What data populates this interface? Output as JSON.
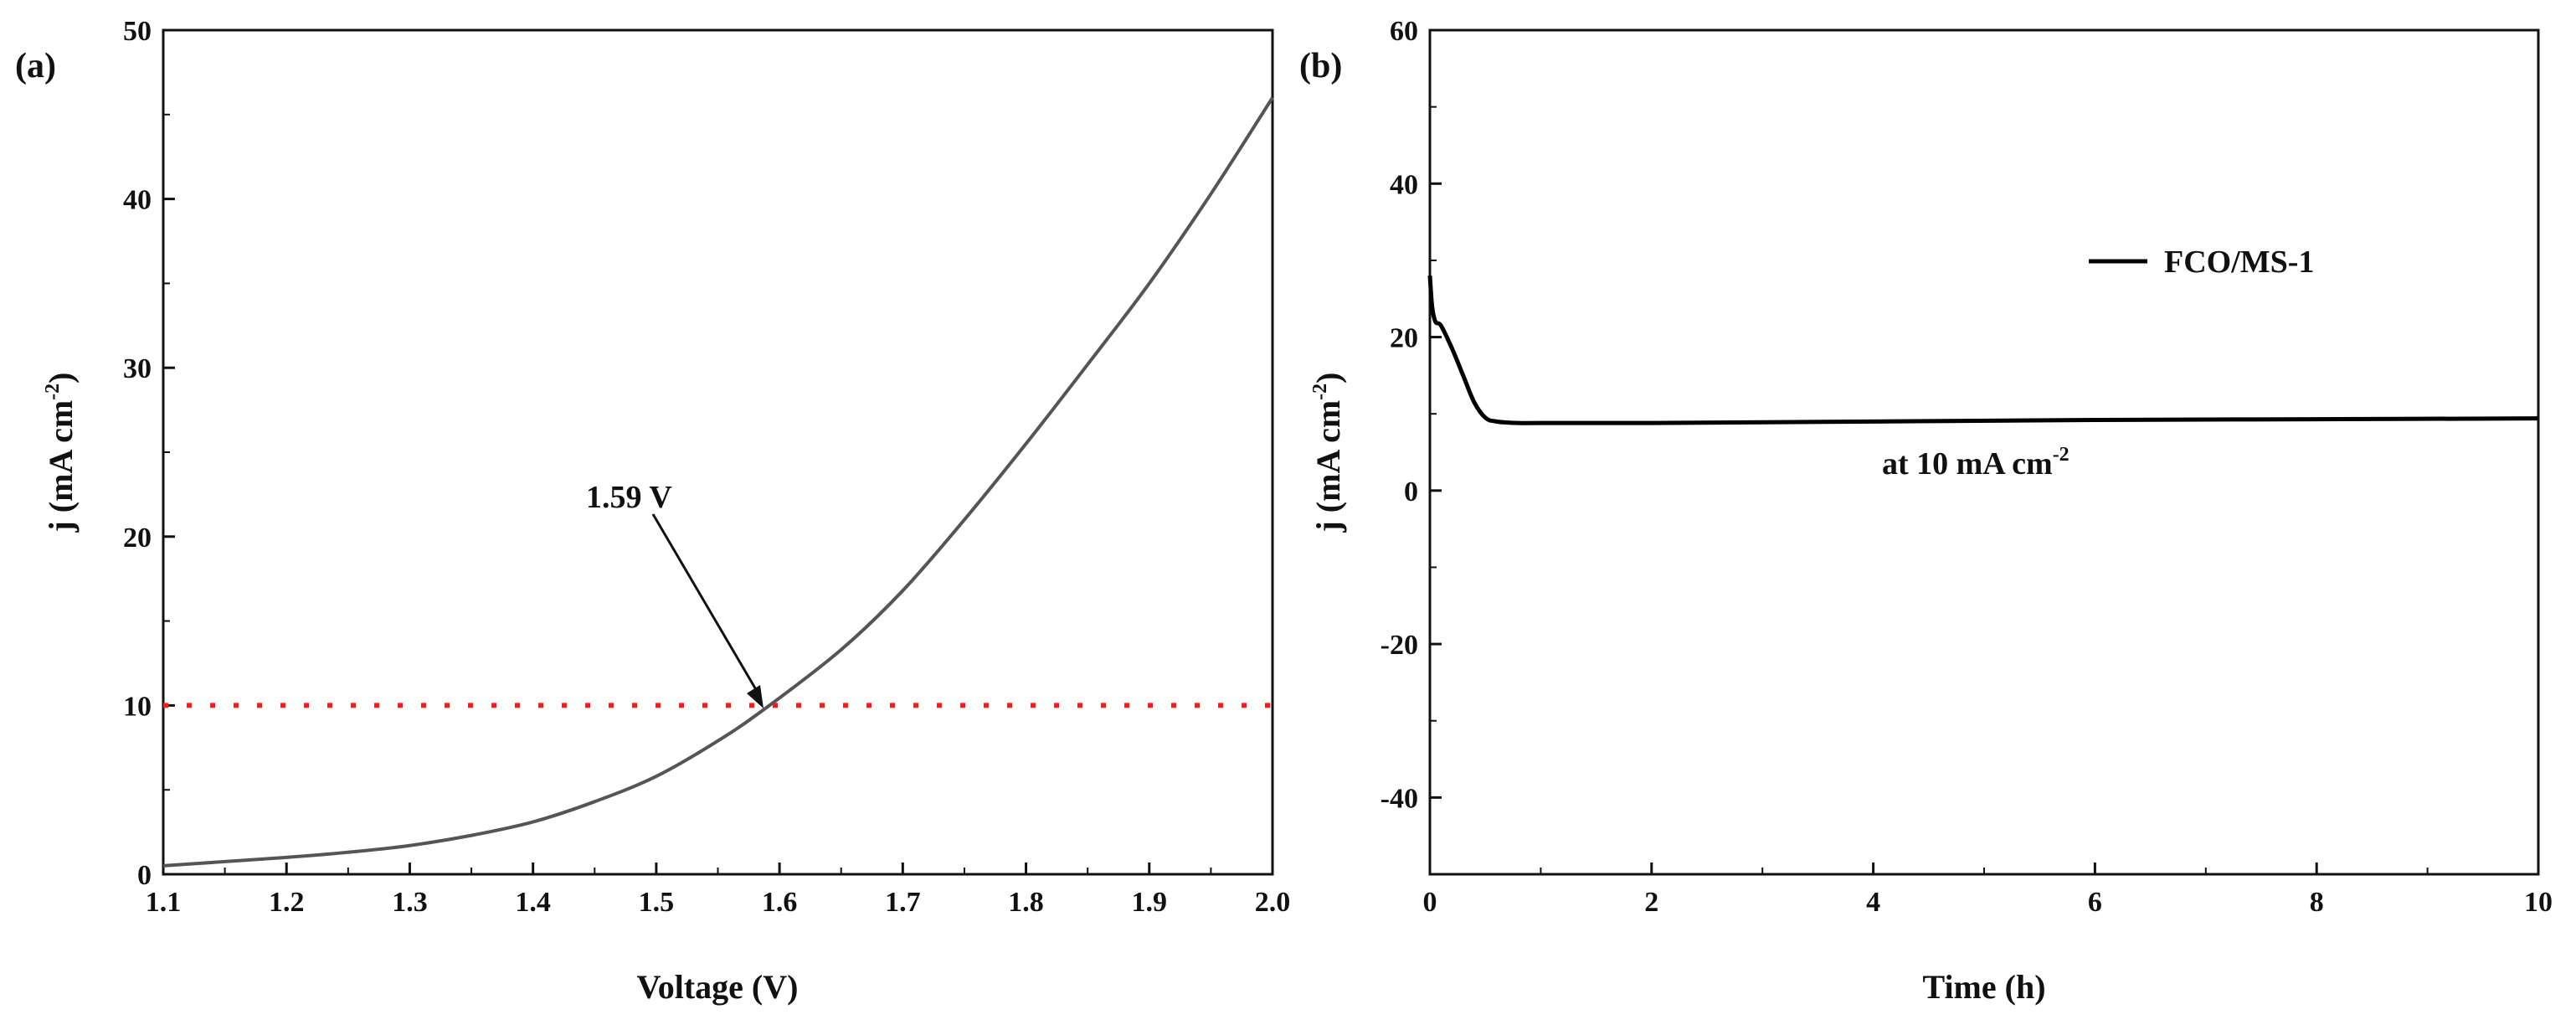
{
  "chart_data": [
    {
      "panel_label": "(a)",
      "type": "line",
      "xlabel": "Voltage (V)",
      "ylabel": "j (mA cm",
      "ylabel_sup": "-2",
      "ylabel_end": ")",
      "xlim": [
        1.1,
        2.0
      ],
      "ylim": [
        0,
        50
      ],
      "xticks": [
        1.1,
        1.2,
        1.3,
        1.4,
        1.5,
        1.6,
        1.7,
        1.8,
        1.9,
        2.0
      ],
      "xtick_labels": [
        "1.1",
        "1.2",
        "1.3",
        "1.4",
        "1.5",
        "1.6",
        "1.7",
        "1.8",
        "1.9",
        "2.0"
      ],
      "yticks": [
        0,
        10,
        20,
        30,
        40,
        50
      ],
      "ytick_labels": [
        "0",
        "10",
        "20",
        "30",
        "40",
        "50"
      ],
      "series": [
        {
          "color": "#555555",
          "x": [
            1.1,
            1.15,
            1.2,
            1.25,
            1.3,
            1.35,
            1.4,
            1.45,
            1.5,
            1.55,
            1.59,
            1.65,
            1.7,
            1.75,
            1.8,
            1.85,
            1.9,
            1.95,
            2.0
          ],
          "y": [
            0.5,
            0.75,
            1.0,
            1.3,
            1.7,
            2.3,
            3.1,
            4.3,
            5.8,
            7.9,
            9.9,
            13.3,
            16.8,
            21.0,
            25.5,
            30.2,
            35.0,
            40.3,
            46.0
          ]
        }
      ],
      "reference_line": {
        "y": 10,
        "color": "#ff1a1a",
        "style": "dotted"
      },
      "annotation": {
        "text": "1.59 V",
        "x": 1.59,
        "y": 10
      }
    },
    {
      "panel_label": "(b)",
      "type": "line",
      "xlabel": "Time (h)",
      "ylabel": "j (mA cm",
      "ylabel_sup": "-2",
      "ylabel_end": ")",
      "xlim": [
        0,
        10
      ],
      "ylim": [
        -50,
        60
      ],
      "xticks": [
        0,
        2,
        4,
        6,
        8,
        10
      ],
      "xtick_labels": [
        "0",
        "2",
        "4",
        "6",
        "8",
        "10"
      ],
      "yticks": [
        -40,
        -20,
        0,
        20,
        40,
        60
      ],
      "ytick_labels": [
        "-40",
        "-20",
        "0",
        "20",
        "40",
        "60"
      ],
      "legend": {
        "entries": [
          "FCO/MS-1"
        ],
        "placement": "upper-right"
      },
      "series": [
        {
          "name": "FCO/MS-1",
          "color": "#000000",
          "x": [
            0,
            0.02,
            0.05,
            0.1,
            0.2,
            0.3,
            0.4,
            0.5,
            0.6,
            0.8,
            1.0,
            2.0,
            4.0,
            6.0,
            8.0,
            10.0
          ],
          "y": [
            28,
            24,
            22,
            21.5,
            18.5,
            15,
            11.5,
            9.5,
            9.0,
            8.8,
            8.8,
            8.8,
            9.0,
            9.2,
            9.3,
            9.4
          ]
        }
      ],
      "annotation": {
        "text": "at 10 mA cm",
        "sup": "-2"
      }
    }
  ]
}
